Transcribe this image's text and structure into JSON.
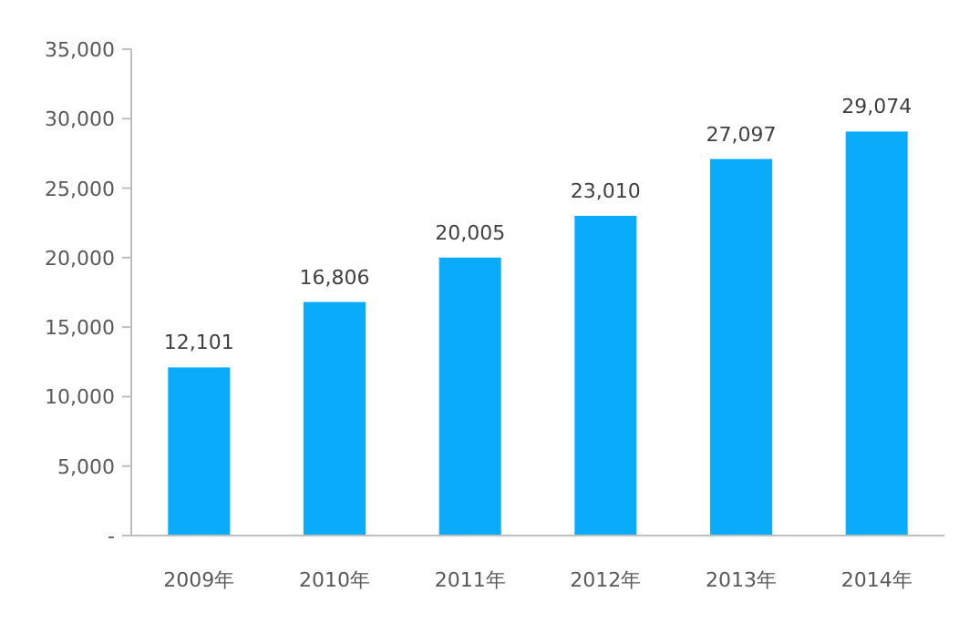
{
  "chart_data": {
    "type": "bar",
    "categories": [
      "2009年",
      "2010年",
      "2011年",
      "2012年",
      "2013年",
      "2014年"
    ],
    "values": [
      12101,
      16806,
      20005,
      23010,
      27097,
      29074
    ],
    "value_labels": [
      "12,101",
      "16,806",
      "20,005",
      "23,010",
      "27,097",
      "29,074"
    ],
    "color": "#0aabfb",
    "ylim": [
      0,
      35000
    ],
    "yticks": [
      {
        "value": 0,
        "label": "-"
      },
      {
        "value": 5000,
        "label": "5,000"
      },
      {
        "value": 10000,
        "label": "10,000"
      },
      {
        "value": 15000,
        "label": "15,000"
      },
      {
        "value": 20000,
        "label": "20,000"
      },
      {
        "value": 25000,
        "label": "25,000"
      },
      {
        "value": 30000,
        "label": "30,000"
      },
      {
        "value": 35000,
        "label": "35,000"
      }
    ]
  }
}
